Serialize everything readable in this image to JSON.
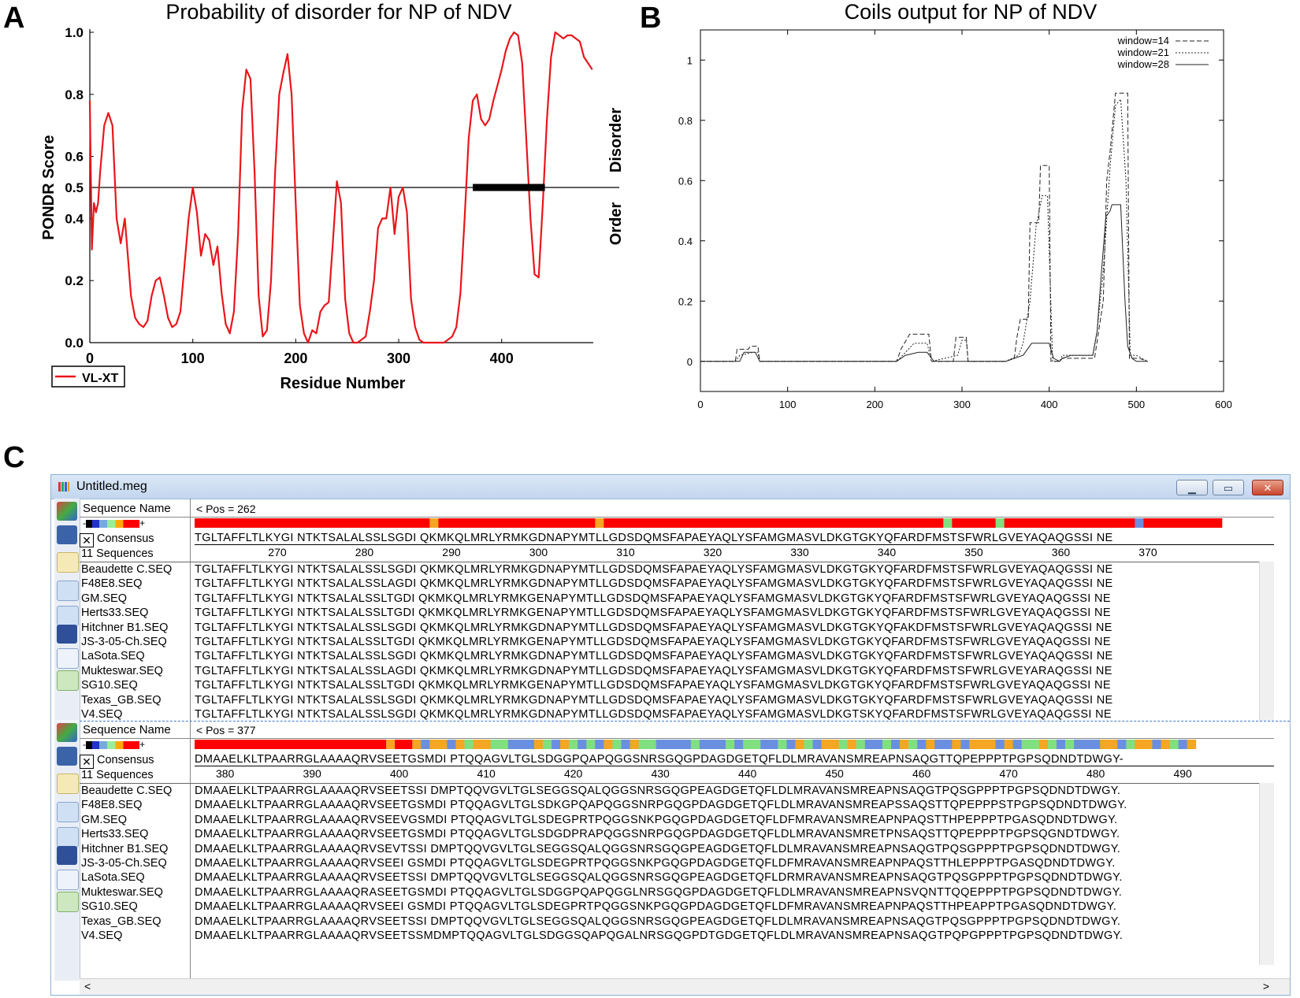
{
  "panels": {
    "a": "A",
    "b": "B",
    "c": "C"
  },
  "chart_data": [
    {
      "type": "line",
      "title": "Probability of disorder for NP of NDV",
      "xlabel": "Residue Number",
      "ylabel": "PONDR Score",
      "xlim": [
        0,
        489
      ],
      "ylim": [
        0,
        1.0
      ],
      "xticks": [
        "0",
        "100",
        "200",
        "300",
        "400"
      ],
      "yticks": [
        "0.0",
        "0.2",
        "0.4",
        "0.5",
        "0.6",
        "0.8",
        "1.0"
      ],
      "threshold": 0.5,
      "threshold_labels": {
        "upper": "Disorder",
        "lower": "Order"
      },
      "disorder_region": [
        372,
        442
      ],
      "legend": "VL-XT",
      "series": [
        {
          "name": "VL-XT",
          "color": "#e8161b",
          "x": [
            0,
            2,
            4,
            6,
            8,
            10,
            14,
            18,
            22,
            26,
            30,
            34,
            36,
            40,
            44,
            48,
            52,
            56,
            60,
            64,
            68,
            72,
            76,
            80,
            84,
            88,
            92,
            96,
            100,
            104,
            108,
            112,
            116,
            120,
            124,
            128,
            132,
            136,
            140,
            144,
            148,
            152,
            156,
            160,
            164,
            168,
            172,
            176,
            180,
            184,
            188,
            192,
            196,
            200,
            204,
            208,
            212,
            216,
            220,
            224,
            228,
            232,
            236,
            240,
            244,
            248,
            252,
            256,
            260,
            264,
            268,
            272,
            276,
            280,
            284,
            288,
            292,
            296,
            300,
            304,
            308,
            312,
            316,
            320,
            324,
            328,
            332,
            336,
            340,
            344,
            348,
            352,
            356,
            360,
            364,
            368,
            372,
            376,
            380,
            384,
            388,
            392,
            396,
            400,
            404,
            408,
            412,
            416,
            420,
            424,
            428,
            432,
            436,
            440,
            444,
            448,
            452,
            456,
            460,
            464,
            468,
            472,
            476,
            480,
            484,
            488
          ],
          "values": [
            0.78,
            0.3,
            0.45,
            0.42,
            0.45,
            0.55,
            0.7,
            0.74,
            0.7,
            0.4,
            0.32,
            0.4,
            0.32,
            0.15,
            0.08,
            0.06,
            0.05,
            0.07,
            0.15,
            0.2,
            0.21,
            0.15,
            0.08,
            0.05,
            0.06,
            0.1,
            0.25,
            0.4,
            0.5,
            0.42,
            0.28,
            0.35,
            0.33,
            0.25,
            0.31,
            0.16,
            0.06,
            0.03,
            0.1,
            0.35,
            0.75,
            0.88,
            0.85,
            0.55,
            0.15,
            0.02,
            0.04,
            0.2,
            0.55,
            0.8,
            0.87,
            0.93,
            0.8,
            0.45,
            0.12,
            0.03,
            0.0,
            0.04,
            0.03,
            0.1,
            0.12,
            0.13,
            0.32,
            0.52,
            0.45,
            0.14,
            0.03,
            0.0,
            0.0,
            0.01,
            0.02,
            0.1,
            0.2,
            0.37,
            0.4,
            0.4,
            0.5,
            0.35,
            0.47,
            0.5,
            0.42,
            0.14,
            0.05,
            0.01,
            0.0,
            0.0,
            0.0,
            0.0,
            0.0,
            0.0,
            0.01,
            0.02,
            0.05,
            0.16,
            0.4,
            0.66,
            0.78,
            0.8,
            0.72,
            0.7,
            0.72,
            0.78,
            0.83,
            0.88,
            0.94,
            0.98,
            1.0,
            0.99,
            0.9,
            0.65,
            0.4,
            0.22,
            0.21,
            0.45,
            0.72,
            0.92,
            1.0,
            0.99,
            0.98,
            0.99,
            0.99,
            0.98,
            0.97,
            0.92,
            0.9,
            0.88
          ]
        }
      ]
    },
    {
      "type": "line",
      "title": "Coils output for NP of NDV",
      "xlim": [
        0,
        600
      ],
      "ylim": [
        -0.1,
        1.1
      ],
      "xticks": [
        "0",
        "100",
        "200",
        "300",
        "400",
        "500",
        "600"
      ],
      "yticks": [
        "0",
        "0.2",
        "0.4",
        "0.6",
        "0.8",
        "1"
      ],
      "legend_position": "top-right",
      "series": [
        {
          "name": "window=14",
          "dash": "dashed",
          "x": [
            0,
            40,
            42,
            55,
            57,
            66,
            68,
            225,
            230,
            240,
            250,
            262,
            265,
            290,
            293,
            305,
            307,
            350,
            360,
            363,
            367,
            376,
            378,
            388,
            390,
            390,
            400,
            402,
            412,
            415,
            428,
            440,
            449,
            452,
            462,
            466,
            470,
            476,
            478,
            490,
            492,
            500,
            503,
            513
          ],
          "values": [
            0,
            0,
            0.04,
            0.04,
            0.05,
            0.05,
            0,
            0,
            0.04,
            0.09,
            0.09,
            0.09,
            0,
            0,
            0.08,
            0.08,
            0,
            0,
            0.01,
            0.08,
            0.14,
            0.14,
            0.46,
            0.46,
            0.65,
            0.65,
            0.65,
            0,
            0,
            0.01,
            0.01,
            0.01,
            0.01,
            0.01,
            0.2,
            0.6,
            0.7,
            0.89,
            0.89,
            0.89,
            0.01,
            0.01,
            0.01,
            0
          ]
        },
        {
          "name": "window=21",
          "dash": "dotted",
          "x": [
            0,
            40,
            45,
            60,
            66,
            68,
            225,
            232,
            245,
            260,
            265,
            295,
            300,
            305,
            307,
            350,
            365,
            370,
            378,
            385,
            392,
            398,
            404,
            412,
            415,
            430,
            450,
            455,
            462,
            470,
            476,
            482,
            488,
            493,
            500,
            513
          ],
          "values": [
            0,
            0,
            0.02,
            0.03,
            0.03,
            0,
            0,
            0.02,
            0.06,
            0.06,
            0,
            0.02,
            0.07,
            0.07,
            0,
            0,
            0.02,
            0.06,
            0.2,
            0.45,
            0.55,
            0.55,
            0,
            0,
            0.02,
            0.02,
            0.02,
            0.1,
            0.3,
            0.65,
            0.85,
            0.87,
            0.6,
            0.02,
            0.02,
            0
          ]
        },
        {
          "name": "window=28",
          "dash": "solid",
          "x": [
            0,
            45,
            50,
            63,
            68,
            225,
            235,
            250,
            260,
            268,
            300,
            308,
            350,
            370,
            375,
            380,
            392,
            400,
            405,
            412,
            415,
            425,
            438,
            450,
            455,
            460,
            465,
            470,
            472,
            482,
            487,
            490,
            495,
            500,
            513
          ],
          "values": [
            0,
            0,
            0.03,
            0.03,
            0,
            0,
            0.02,
            0.03,
            0.03,
            0,
            0,
            0,
            0,
            0.02,
            0.04,
            0.06,
            0.06,
            0.06,
            0.01,
            0,
            0.01,
            0.02,
            0.02,
            0.02,
            0.1,
            0.3,
            0.48,
            0.5,
            0.52,
            0.52,
            0.2,
            0.05,
            0.01,
            0,
            0
          ]
        }
      ]
    }
  ],
  "window": {
    "title": "Untitled.meg",
    "btn_min": "▁",
    "btn_max": "▭",
    "btn_close": "✕",
    "col_header": "Sequence Name",
    "consensus_label": "Consensus",
    "count_label": "11 Sequences",
    "scale_minus": "-",
    "scale_plus": "+",
    "scroll_left": "<",
    "scroll_right": ">"
  },
  "alignment1": {
    "pos_label": "< Pos = 262",
    "consensus": "TGLTAFFLTLKYGI NTKTSALALSSLSGDI QKMKQLMRLYRMKGDNAPYMTLLGDSDQMSFAPAEYAQLYSFAMGMASVLDKGTGKYQFARDFMSTSFWRLGVEYAQAQGSSI NE",
    "ruler": [
      {
        "label": "270",
        "col": 9
      },
      {
        "label": "280",
        "col": 19
      },
      {
        "label": "290",
        "col": 29
      },
      {
        "label": "300",
        "col": 39
      },
      {
        "label": "310",
        "col": 49
      },
      {
        "label": "320",
        "col": 59
      },
      {
        "label": "330",
        "col": 69
      },
      {
        "label": "340",
        "col": 79
      },
      {
        "label": "350",
        "col": 89
      },
      {
        "label": "360",
        "col": 99
      },
      {
        "label": "370",
        "col": 109
      }
    ],
    "rows": [
      {
        "name": "Beaudette C.SEQ",
        "seq": "TGLTAFFLTLKYGI NTKTSALALSSLSGDI QKMKQLMRLYRMKGDNAPYMTLLGDSDQMSFAPAEYAQLYSFAMGMASVLDKGTGKYQFARDFMSTSFWRLGVEYAQAQGSSI NE"
      },
      {
        "name": "F48E8.SEQ",
        "seq": "TGLTAFFLTLKYGI NTKTSALALSSLAGDI QKMKQLMRLYRMKGDNAPYMTLLGDSDQMSFAPAEYAQLYSFAMGMASVLDKGTGKYQFARDFMSTSFWRLGVEYAQAQGSSI NE"
      },
      {
        "name": "GM.SEQ",
        "seq": "TGLTAFFLTLKYGI NTKTSALALSSLTGDI QKMKQLMRLYRMKGENAPYMTLLGDSDQMSFAPAEYAQLYSFAMGMASVLDKGTGKYQFARDFMSTSFWRLGVEYAQAQGSSI NE"
      },
      {
        "name": "Herts33.SEQ",
        "seq": "TGLTAFFLTLKYGI NTKTSALALSSLTGDI QKMKQLMRLYRMKGENAPYMTLLGDSDQMSFAPAEYAQLYSFAMGMASVLDKGTGKYQFARDFMSTSFWRLGVEYAQAQGSSI NE"
      },
      {
        "name": "Hitchner B1.SEQ",
        "seq": "TGLTAFFLTLKYGI NTKTSALALSSLSGDI QKMKQLMRLYRMKGDNAPYMTLLGDSDQMSFAPAEYAQLYSFAMGMASVLDKGTGKYQFAKDFMSTSFWRLGVEYAQAQGSSI NE"
      },
      {
        "name": "JS-3-05-Ch.SEQ",
        "seq": "TGLTAFFLTLKYGI NTKTSALALSSLTGDI QKMKQLMRLYRMKGENAPYMTLLGDSDQMSFAPAEYAQLYSFAMGMASVLDKGTGKYQFARDFMSTSFWRLGVEYAQAQGSSI NE"
      },
      {
        "name": "LaSota.SEQ",
        "seq": "TGLTAFFLTLKYGI NTKTSALALSSLSGDI QKMKQLMRLYRMKGDNAPYMTLLGDSDQMSFAPAEYAQLYSFAMGMASVLDKGTGKYQFARDFMSTSFWRLGVEYAQAQGSSI NE"
      },
      {
        "name": "Mukteswar.SEQ",
        "seq": "TGLTAFFLTLKYGI NTKTSALALSSLAGDI QKMKQLMRLYRMKGDNAPYMTLLGDSDQMSFAPAEYAQLYSFAMGMASVLDKGTGKYQFARDFMSTSFWRLGVEYARAQGSSI NE"
      },
      {
        "name": "SG10.SEQ",
        "seq": "TGLTAFFLTLKYGI NTKTSALALSSLTGDI QKMKQLMRLYRMKGENAPYMTLLGDSDQMSFAPAEYAQLYSFAMGMASVLDKGTGKYQFARDFMSTSFWRLGVEYAQAQGSSI NE"
      },
      {
        "name": "Texas_GB.SEQ",
        "seq": "TGLTAFFLTLKYGI NTKTSALALSSLSGDI QKMKQLMRLYRMKGDNAPYMTLLGDSDQMSFAPAEYAQLYSFAMGMASVLDKGTGKYQFARDFMSTSFWRLGVEYAQAQGSSI NE"
      },
      {
        "name": "V4.SEQ",
        "seq": "TGLTAFFLTLKYGI NTKTSALALSSLSGDI QKMKQLMRLYRMKGDNAPYMTLLGDSDQMSFAPAEYAQLYSFAMGMASVLDKGTSKYQFARDFMSTSFWRLGVEYAQAQGSSI NE"
      }
    ]
  },
  "alignment2": {
    "pos_label": "< Pos = 377",
    "consensus": "DMAAELKLTPAARRGLAAAAQRVSEETGSMDI PTQQAGVLTGLSDGGPQAPQGGSNRSGQGPDAGDGETQFLDLMRAVANSMREAPNSAQGTTQPEPPPTPGPSQDNDTDWGY-",
    "ruler": [
      {
        "label": "380",
        "col": 3
      },
      {
        "label": "390",
        "col": 13
      },
      {
        "label": "400",
        "col": 23
      },
      {
        "label": "410",
        "col": 33
      },
      {
        "label": "420",
        "col": 43
      },
      {
        "label": "430",
        "col": 53
      },
      {
        "label": "440",
        "col": 63
      },
      {
        "label": "450",
        "col": 73
      },
      {
        "label": "460",
        "col": 83
      },
      {
        "label": "470",
        "col": 93
      },
      {
        "label": "480",
        "col": 103
      },
      {
        "label": "490",
        "col": 113
      }
    ],
    "rows": [
      {
        "name": "Beaudette C.SEQ",
        "seq": "DMAAELKLTPAARRGLAAAAQRVSEETSSI DMPTQQVGVLTGLSEGGSQALQGGSNRSGQGPEAGDGETQFLDLMRAVANSMREAPNSAQGTPQSGPPPTPGPSQDNDTDWGY."
      },
      {
        "name": "F48E8.SEQ",
        "seq": "DMAAELKLTPAARRGLAAAAQRVSEETGSMDI PTQQAGVLTGLSDKGPQAPQGGSNRPGQGPDAGDGETQFLDLMRAVANSMREAPSSAQSTTQPEPPPSTPGPSQDNDTDWGY."
      },
      {
        "name": "GM.SEQ",
        "seq": "DMAAELKLTPAARRGLAAAAQRVSEEVGSMDI PTQQAGVLTGLSDEGPRTPQGGSNKPGQGPDAGDGETQFLDFMRAVANSMREAPNPAQSTTHPEPPPTPGASQDNDTDWGY."
      },
      {
        "name": "Herts33.SEQ",
        "seq": "DMAAELKLTPAARRGLAAAAQRVSEETGSMDI PTQQAGVLTGLSDGDPRAPQGGSNRPGQGPDAGDGETQFLDLMRAVANSMRETPNSAQSTTQPEPPPTPGPSQGNDTDWGY."
      },
      {
        "name": "Hitchner B1.SEQ",
        "seq": "DMAAELKLTPAARRGLAAAAQRVSEVTSSI DMPTQQVGVLTGLSEGGSQALQGGSNRSGQGPEAGDGETQFLDLMRAVANSMREAPNSAQGTPQSGPPPTPGPSQDNDTDWGY."
      },
      {
        "name": "JS-3-05-Ch.SEQ",
        "seq": "DMAAELKLTPAARRGLAAAAQRVSEEI GSMDI PTQQAGVLTGLSDEGPRTPQGGSNKPGQGPDAGDGETQFLDFMRAVANSMREAPNPAQSTTHLEPPPTPGASQDNDTDWGY."
      },
      {
        "name": "LaSota.SEQ",
        "seq": "DMAAELKLTPAARRGLAAAAQRVSEETSSI DMPTQQVGVLTGLSEGGSQALQGGSNRSGQGPEAGDGETQFLDRMRAVANSMREAPNSAQGTPQSGPPPTPGPSQDNDTDWGY."
      },
      {
        "name": "Mukteswar.SEQ",
        "seq": "DMAAELKLTPAARRGLAAAAQRASEETGSMDI PTQQAGVLTGLSDGGPQAPQGGLNRSGQGPDAGDGETQFLDLMRAVANSMREAPNSVQNTTQQEPPPTPGPSQDNDTDWGY."
      },
      {
        "name": "SG10.SEQ",
        "seq": "DMAAELKLTPAARRGLAAAAQRVSEEI GSMDI PTQQAGVLTGLSDEGPRTPQGGSNKPGQGPDAGDGETQFLDFMRAVANSMREAPNPAQSTTHPEAPPTPGASQDNDTDWGY."
      },
      {
        "name": "Texas_GB.SEQ",
        "seq": "DMAAELKLTPAARRGLAAAAQRVSEETSSI DMPTQQVGVLTGLSEGGSQALQGGSNRSGQGPEAGDGETQFLDLMRAVANSMREAPNSAQGTPQSGPPPTPGPSQDNDTDWGY."
      },
      {
        "name": "V4.SEQ",
        "seq": "DMAAELKLTPAARRGLAAAAQRVSEETSSMDMPTQQAGVLTGLSDGGSQAPQGALNRSGQGPDTGDGETQFLDLMRAVANSMREAPNSAQGTPQPGPPPTPGPSQDNDTDWGY."
      }
    ]
  },
  "colors": {
    "pondr": "#e8161b",
    "conserved": "#ff0000",
    "variable1": "#f5a623",
    "variable2": "#80e080",
    "variable3": "#6a8fe0"
  }
}
